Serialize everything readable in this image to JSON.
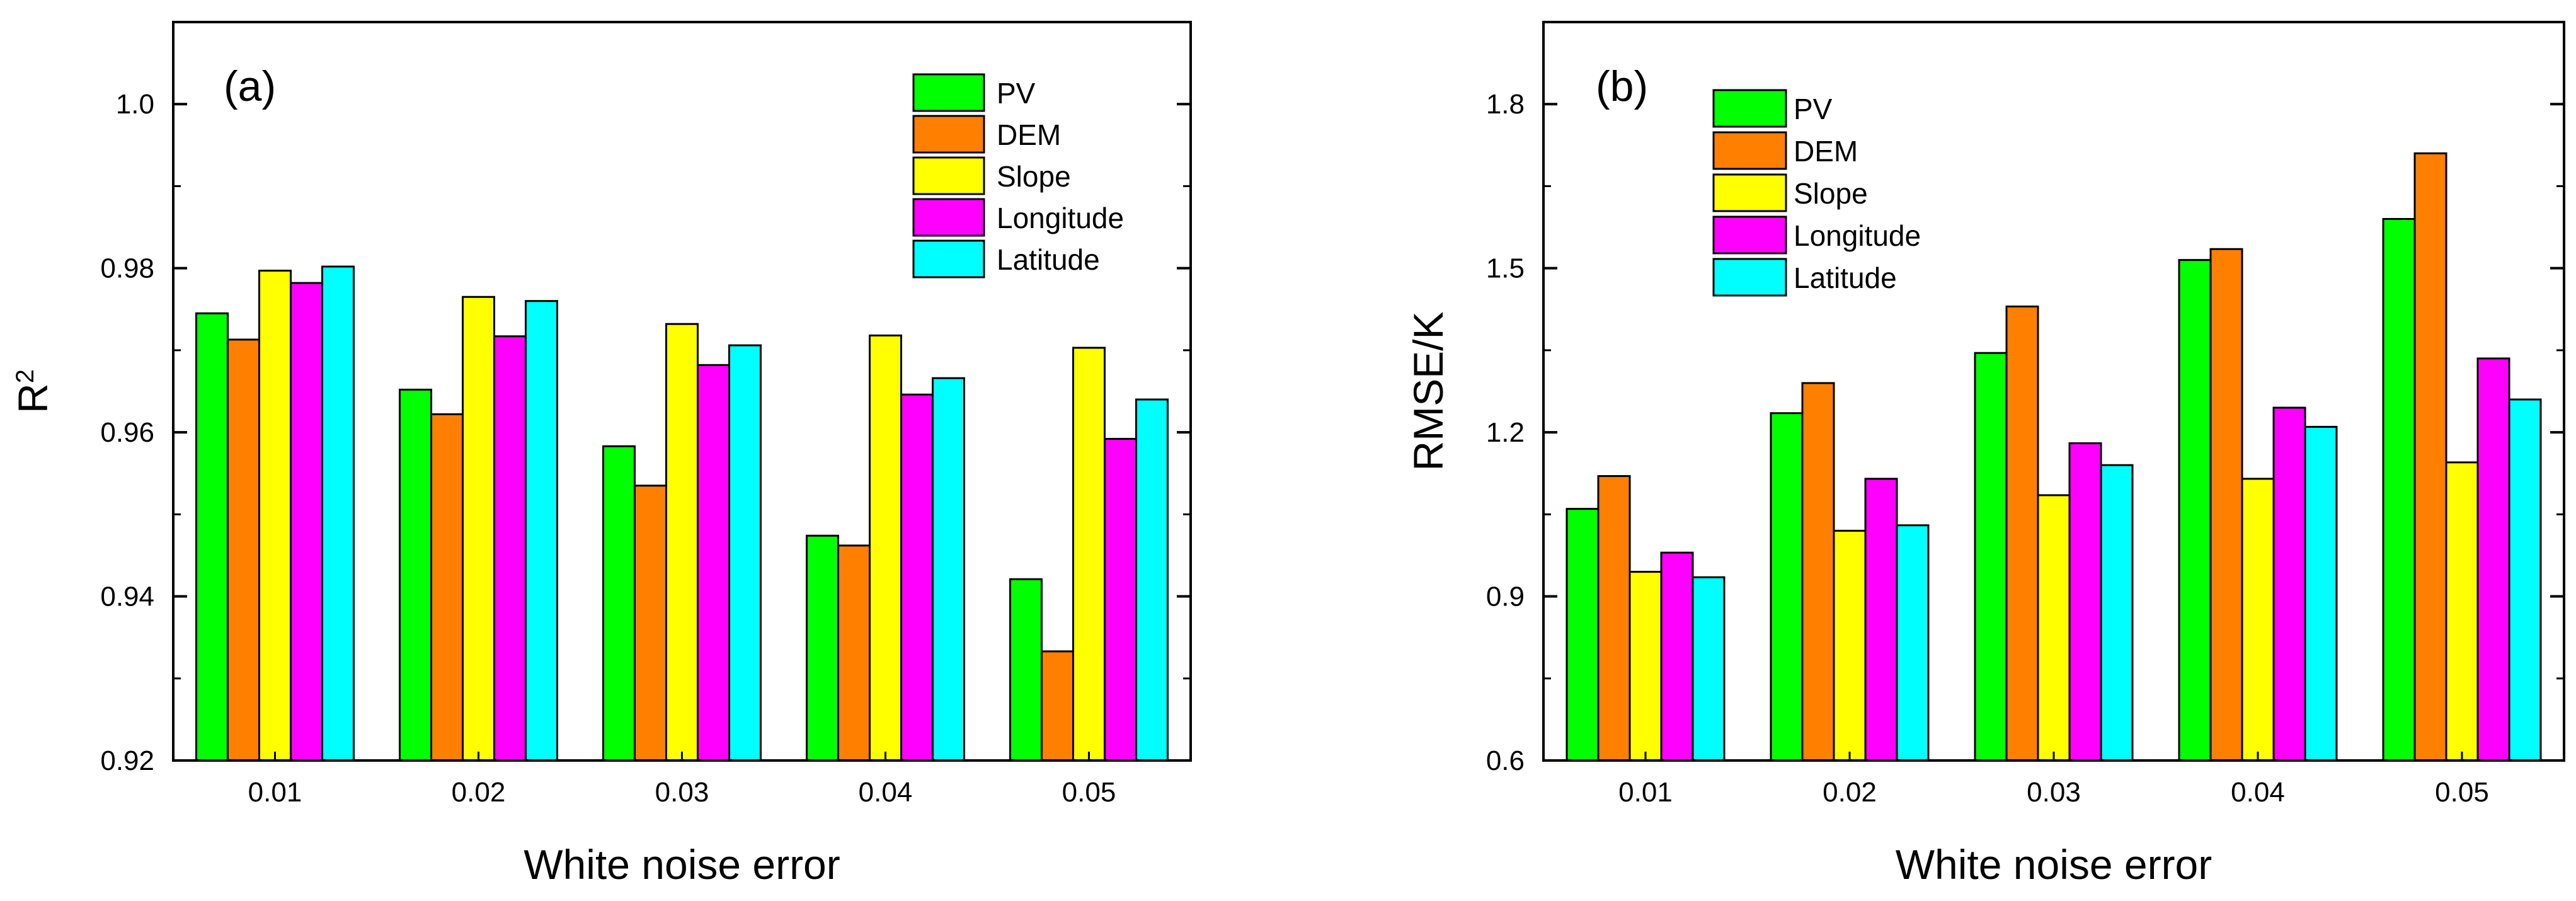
{
  "colors": {
    "PV": "#00ff00",
    "DEM": "#ff7f00",
    "Slope": "#ffff00",
    "Longitude": "#ff00ff",
    "Latitude": "#00ffff"
  },
  "chart_data": [
    {
      "type": "bar",
      "panel_label": "(a)",
      "title": "",
      "xlabel": "White noise error",
      "ylabel": "R",
      "ylabel_superscript": "2",
      "categories": [
        "0.01",
        "0.02",
        "0.03",
        "0.04",
        "0.05"
      ],
      "ylim": [
        0.92,
        1.01
      ],
      "yticks": [
        0.92,
        0.94,
        0.96,
        0.98,
        1.0
      ],
      "ytick_labels": [
        "0.92",
        "0.94",
        "0.96",
        "0.98",
        "1.0"
      ],
      "legend_position": "top-right",
      "series": [
        {
          "name": "PV",
          "values": [
            0.9745,
            0.9652,
            0.9583,
            0.9474,
            0.9421
          ]
        },
        {
          "name": "DEM",
          "values": [
            0.9713,
            0.9622,
            0.9535,
            0.9462,
            0.9333
          ]
        },
        {
          "name": "Slope",
          "values": [
            0.9797,
            0.9765,
            0.9732,
            0.9718,
            0.9703
          ]
        },
        {
          "name": "Longitude",
          "values": [
            0.9782,
            0.9717,
            0.9682,
            0.9646,
            0.9592
          ]
        },
        {
          "name": "Latitude",
          "values": [
            0.9802,
            0.976,
            0.9706,
            0.9666,
            0.964
          ]
        }
      ]
    },
    {
      "type": "bar",
      "panel_label": "(b)",
      "title": "",
      "xlabel": "White noise error",
      "ylabel": "RMSE/K",
      "categories": [
        "0.01",
        "0.02",
        "0.03",
        "0.04",
        "0.05"
      ],
      "ylim": [
        0.6,
        1.95
      ],
      "yticks": [
        0.6,
        0.9,
        1.2,
        1.5,
        1.8
      ],
      "ytick_labels": [
        "0.6",
        "0.9",
        "1.2",
        "1.5",
        "1.8"
      ],
      "legend_position": "top-left",
      "series": [
        {
          "name": "PV",
          "values": [
            1.06,
            1.235,
            1.345,
            1.515,
            1.59
          ]
        },
        {
          "name": "DEM",
          "values": [
            1.12,
            1.29,
            1.43,
            1.535,
            1.71
          ]
        },
        {
          "name": "Slope",
          "values": [
            0.945,
            1.02,
            1.085,
            1.115,
            1.145
          ]
        },
        {
          "name": "Longitude",
          "values": [
            0.98,
            1.115,
            1.18,
            1.245,
            1.335
          ]
        },
        {
          "name": "Latitude",
          "values": [
            0.935,
            1.03,
            1.14,
            1.21,
            1.26
          ]
        }
      ]
    }
  ]
}
